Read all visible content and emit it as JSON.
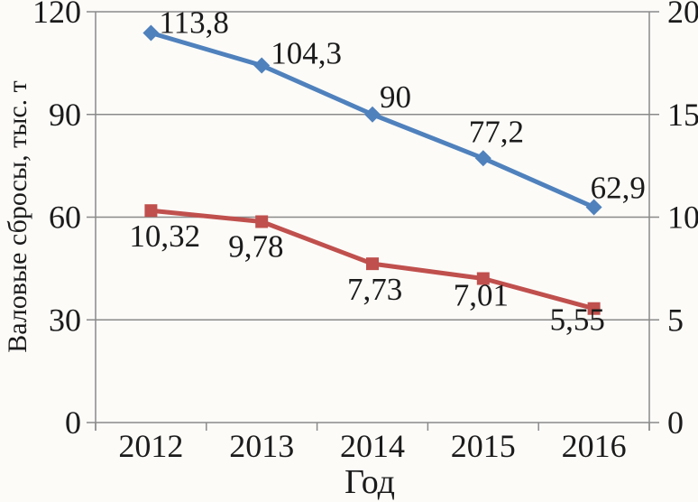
{
  "chart_data": {
    "type": "line",
    "xlabel": "Год",
    "ylabel_left": "Валовые сбросы, тыс. т",
    "categories": [
      "2012",
      "2013",
      "2014",
      "2015",
      "2016"
    ],
    "left_axis": {
      "min": 0,
      "max": 120,
      "step": 30,
      "ticks": [
        "0",
        "30",
        "60",
        "90",
        "120"
      ]
    },
    "right_axis": {
      "min": 0,
      "max": 20,
      "step": 5,
      "ticks": [
        "0",
        "5",
        "10",
        "15",
        "20"
      ]
    },
    "grid": "horizontal",
    "legend": "none",
    "series": [
      {
        "name": "series-blue-left-axis",
        "axis": "left",
        "color": "#4f81bd",
        "marker": "diamond",
        "values": [
          113.8,
          104.3,
          90,
          77.2,
          62.9
        ],
        "labels": [
          "113,8",
          "104,3",
          "90",
          "77,2",
          "62,9"
        ]
      },
      {
        "name": "series-red-right-axis",
        "axis": "right",
        "color": "#c0504d",
        "marker": "square",
        "values": [
          10.32,
          9.78,
          7.73,
          7.01,
          5.55
        ],
        "labels": [
          "10,32",
          "9,78",
          "7,73",
          "7,01",
          "5,55"
        ]
      }
    ]
  }
}
